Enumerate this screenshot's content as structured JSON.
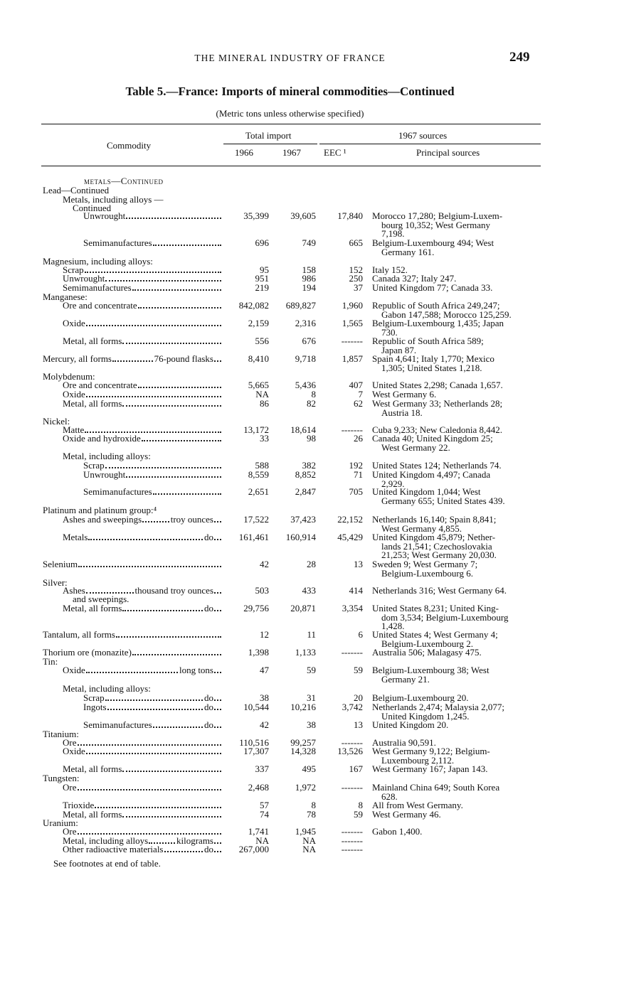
{
  "running_head": "THE MINERAL INDUSTRY OF FRANCE",
  "page_number": "249",
  "table_title": "Table 5.—France: Imports of mineral commodities—Continued",
  "table_subtitle": "(Metric tons unless otherwise specified)",
  "headers": {
    "commodity": "Commodity",
    "total_import": "Total import",
    "y1966": "1966",
    "y1967": "1967",
    "sources_1967": "1967 sources",
    "eec": "EEC ¹",
    "principal_sources": "Principal sources"
  },
  "rows": [
    {
      "label": "metals—Continued",
      "level": "heading"
    },
    {
      "label": "Lead—Continued",
      "level": 0
    },
    {
      "label": "Metals, including alloys  —",
      "level": 1
    },
    {
      "label": "Continued",
      "level": 1.5
    },
    {
      "label": "Unwrought",
      "level": 2,
      "v1966": "35,399",
      "v1967": "39,605",
      "eec": "17,840",
      "sources": [
        "Morocco 17,280; Belgium-Luxem-",
        "bourg 10,352; West Germany",
        "7,198."
      ]
    },
    {
      "label": "Semimanufactures",
      "level": 2,
      "v1966": "696",
      "v1967": "749",
      "eec": "665",
      "sources": [
        "Belgium-Luxembourg 494; West",
        "Germany 161."
      ]
    },
    {
      "label": "Magnesium, including alloys:",
      "level": 0
    },
    {
      "label": "Scrap",
      "level": 1,
      "v1966": "95",
      "v1967": "158",
      "eec": "152",
      "sources": [
        "Italy 152."
      ]
    },
    {
      "label": "Unwrought",
      "level": 1,
      "v1966": "951",
      "v1967": "986",
      "eec": "250",
      "sources": [
        "Canada 327; Italy 247."
      ]
    },
    {
      "label": "Semimanufactures",
      "level": 1,
      "v1966": "219",
      "v1967": "194",
      "eec": "37",
      "sources": [
        "United Kingdom 77; Canada 33."
      ]
    },
    {
      "label": "Manganese:",
      "level": 0
    },
    {
      "label": "Ore and concentrate",
      "level": 1,
      "v1966": "842,082",
      "v1967": "689,827",
      "eec": "1,960",
      "sources": [
        "Republic of South Africa 249,247;",
        "Gabon 147,588; Morocco 125,259."
      ]
    },
    {
      "label": "Oxide",
      "level": 1,
      "v1966": "2,159",
      "v1967": "2,316",
      "eec": "1,565",
      "sources": [
        "Belgium-Luxembourg 1,435; Japan",
        "730."
      ]
    },
    {
      "label": "Metal, all forms",
      "level": 1,
      "v1966": "556",
      "v1967": "676",
      "eec": "-------",
      "sources": [
        "Republic of South Africa 589;",
        "Japan 87."
      ]
    },
    {
      "label": "Mercury, all forms",
      "unit": "76-pound flasks",
      "level": 0,
      "v1966": "8,410",
      "v1967": "9,718",
      "eec": "1,857",
      "sources": [
        "Spain 4,641; Italy 1,770; Mexico",
        "1,305; United States 1,218."
      ]
    },
    {
      "label": "Molybdenum:",
      "level": 0
    },
    {
      "label": "Ore and concentrate",
      "level": 1,
      "v1966": "5,665",
      "v1967": "5,436",
      "eec": "407",
      "sources": [
        "United States 2,298; Canada 1,657."
      ]
    },
    {
      "label": "Oxide",
      "level": 1,
      "v1966": "NA",
      "v1967": "8",
      "eec": "7",
      "sources": [
        "West Germany 6."
      ]
    },
    {
      "label": "Metal, all forms",
      "level": 1,
      "v1966": "86",
      "v1967": "82",
      "eec": "62",
      "sources": [
        "West Germany 33; Netherlands 28;",
        "Austria 18."
      ]
    },
    {
      "label": "Nickel:",
      "level": 0
    },
    {
      "label": "Matte",
      "level": 1,
      "v1966": "13,172",
      "v1967": "18,614",
      "eec": "-------",
      "sources": [
        "Cuba 9,233; New Caledonia 8,442."
      ]
    },
    {
      "label": "Oxide and hydroxide",
      "level": 1,
      "v1966": "33",
      "v1967": "98",
      "eec": "26",
      "sources": [
        "Canada 40; United Kingdom 25;",
        "West Germany 22."
      ]
    },
    {
      "label": "Metal, including alloys:",
      "level": 1
    },
    {
      "label": "Scrap",
      "level": 2,
      "v1966": "588",
      "v1967": "382",
      "eec": "192",
      "sources": [
        "United States 124; Netherlands 74."
      ]
    },
    {
      "label": "Unwrought",
      "level": 2,
      "v1966": "8,559",
      "v1967": "8,852",
      "eec": "71",
      "sources": [
        "United Kingdom 4,497; Canada",
        "2,929."
      ]
    },
    {
      "label": "Semimanufactures",
      "level": 2,
      "v1966": "2,651",
      "v1967": "2,847",
      "eec": "705",
      "sources": [
        "United Kingdom 1,044; West",
        "Germany 655; United States 439."
      ]
    },
    {
      "label": "Platinum and platinum group:⁴",
      "level": 0
    },
    {
      "label": "Ashes and sweepings",
      "unit": "troy ounces",
      "level": 1,
      "v1966": "17,522",
      "v1967": "37,423",
      "eec": "22,152",
      "sources": [
        "Netherlands 16,140; Spain 8,841;",
        "West Germany 4,855."
      ]
    },
    {
      "label": "Metals",
      "unit": "do",
      "level": 1,
      "v1966": "161,461",
      "v1967": "160,914",
      "eec": "45,429",
      "sources": [
        "United Kingdom 45,879; Nether-",
        "lands 21,541; Czechoslovakia",
        "21,253; West Germany 20,030."
      ]
    },
    {
      "label": "Selenium",
      "level": 0,
      "v1966": "42",
      "v1967": "28",
      "eec": "13",
      "sources": [
        "Sweden 9; West Germany 7;",
        "Belgium-Luxembourg 6."
      ]
    },
    {
      "label": "Silver:",
      "level": 0
    },
    {
      "label": "Ashes",
      "unit": "thousand troy ounces",
      "level": 1,
      "v1966": "503",
      "v1967": "433",
      "eec": "414",
      "sources": [
        "Netherlands 316; West Germany 64."
      ]
    },
    {
      "label": "and sweepings.",
      "level": 1.5
    },
    {
      "label": "Metal, all forms",
      "unit": "do",
      "level": 1,
      "v1966": "29,756",
      "v1967": "20,871",
      "eec": "3,354",
      "sources": [
        "United States 8,231; United King-",
        "dom 3,534; Belgium-Luxembourg",
        "1,428."
      ]
    },
    {
      "label": "Tantalum, all forms",
      "level": 0,
      "v1966": "12",
      "v1967": "11",
      "eec": "6",
      "sources": [
        "United States 4; West Germany 4;",
        "Belgium-Luxembourg 2."
      ]
    },
    {
      "label": "Thorium ore (monazite)",
      "level": 0,
      "v1966": "1,398",
      "v1967": "1,133",
      "eec": "-------",
      "sources": [
        "Australia 506; Malagasy 475."
      ]
    },
    {
      "label": "Tin:",
      "level": 0
    },
    {
      "label": "Oxide",
      "unit": "long tons",
      "level": 1,
      "v1966": "47",
      "v1967": "59",
      "eec": "59",
      "sources": [
        "Belgium-Luxembourg 38; West",
        "Germany 21."
      ]
    },
    {
      "label": "Metal, including alloys:",
      "level": 1
    },
    {
      "label": "Scrap",
      "unit": "do",
      "level": 2,
      "v1966": "38",
      "v1967": "31",
      "eec": "20",
      "sources": [
        "Belgium-Luxembourg 20."
      ]
    },
    {
      "label": "Ingots",
      "unit": "do",
      "level": 2,
      "v1966": "10,544",
      "v1967": "10,216",
      "eec": "3,742",
      "sources": [
        "Netherlands 2,474; Malaysia 2,077;",
        "United Kingdom 1,245."
      ]
    },
    {
      "label": "Semimanufactures",
      "unit": "do",
      "level": 2,
      "v1966": "42",
      "v1967": "38",
      "eec": "13",
      "sources": [
        "United Kingdom 20."
      ]
    },
    {
      "label": "Titanium:",
      "level": 0
    },
    {
      "label": "Ore",
      "level": 1,
      "v1966": "110,516",
      "v1967": "99,257",
      "eec": "-------",
      "sources": [
        "Australia 90,591."
      ]
    },
    {
      "label": "Oxide",
      "level": 1,
      "v1966": "17,307",
      "v1967": "14,328",
      "eec": "13,526",
      "sources": [
        "West Germany 9,122; Belgium-",
        "Luxembourg 2,112."
      ]
    },
    {
      "label": "Metal, all forms",
      "level": 1,
      "v1966": "337",
      "v1967": "495",
      "eec": "167",
      "sources": [
        "West Germany 167; Japan 143."
      ]
    },
    {
      "label": "Tungsten:",
      "level": 0
    },
    {
      "label": "Ore",
      "level": 1,
      "v1966": "2,468",
      "v1967": "1,972",
      "eec": "-------",
      "sources": [
        "Mainland China 649; South Korea",
        "628."
      ]
    },
    {
      "label": "Trioxide",
      "level": 1,
      "v1966": "57",
      "v1967": "8",
      "eec": "8",
      "sources": [
        "All from West Germany."
      ]
    },
    {
      "label": "Metal, all forms",
      "level": 1,
      "v1966": "74",
      "v1967": "78",
      "eec": "59",
      "sources": [
        "West Germany 46."
      ]
    },
    {
      "label": "Uranium:",
      "level": 0
    },
    {
      "label": "Ore",
      "level": 1,
      "v1966": "1,741",
      "v1967": "1,945",
      "eec": "-------",
      "sources": [
        "Gabon 1,400."
      ]
    },
    {
      "label": "Metal, including alloys",
      "unit": "kilograms",
      "level": 1,
      "v1966": "NA",
      "v1967": "NA",
      "eec": "-------"
    },
    {
      "label": "Other radioactive materials",
      "unit": "do",
      "level": 1,
      "v1966": "267,000",
      "v1967": "NA",
      "eec": "-------"
    }
  ],
  "footnote": "See footnotes at end of table."
}
